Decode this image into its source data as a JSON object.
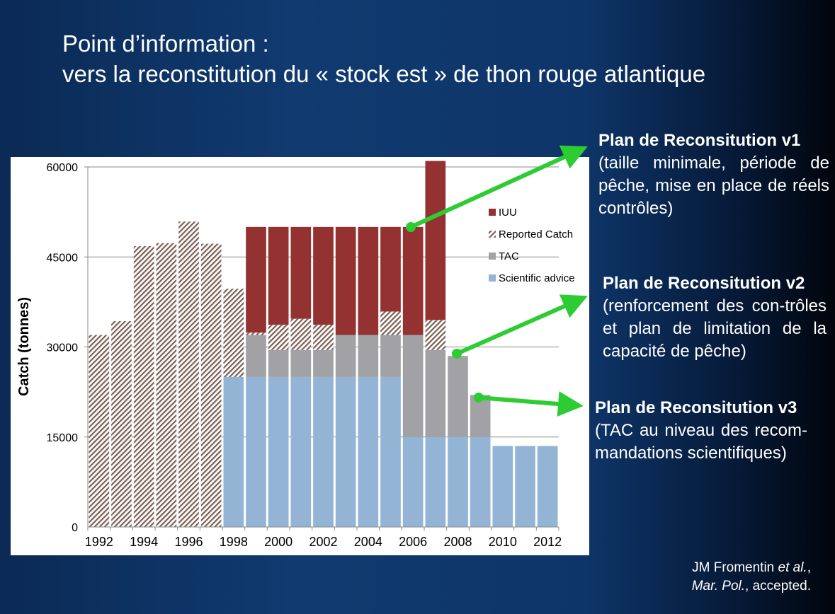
{
  "title": {
    "line1": "Point d’information :",
    "line2": "vers la reconstitution du « stock est » de thon rouge atlantique"
  },
  "notes": [
    {
      "heading": "Plan de Reconsitution v1",
      "body": "(taille minimale, période de pêche, mise en place de réels contrôles)"
    },
    {
      "heading": "Plan de Reconsitution v2",
      "body": "(renforcement des con-trôles et plan de limitation de la capacité de pêche)"
    },
    {
      "heading": "Plan de Reconsitution v3",
      "body": "(TAC au niveau des recom-mandations scientifiques)"
    }
  ],
  "reference": {
    "author": "JM Fromentin",
    "etal": "et al.",
    "journal": "Mar. Pol.",
    "status": ", accepted."
  },
  "colors": {
    "iuu": "#943131",
    "reported": "#7b5f55",
    "tac": "#a2a2a6",
    "advice": "#94b4d6",
    "arrow": "#2ecc33"
  },
  "chart_data": {
    "type": "bar",
    "stacked": true,
    "ylabel": "Catch (tonnes)",
    "xlabel": "",
    "ylim": [
      0,
      60000
    ],
    "yticks": [
      0,
      15000,
      30000,
      45000,
      60000
    ],
    "xtick_labels": [
      "1992",
      "1994",
      "1996",
      "1998",
      "2000",
      "2002",
      "2004",
      "2006",
      "2008",
      "2010",
      "2012"
    ],
    "categories": [
      "1992",
      "1993",
      "1994",
      "1995",
      "1996",
      "1997",
      "1998",
      "1999",
      "2000",
      "2001",
      "2002",
      "2003",
      "2004",
      "2005",
      "2006",
      "2007",
      "2008",
      "2009",
      "2010",
      "2011",
      "2012"
    ],
    "legend_position": "right",
    "series": [
      {
        "name": "Scientific advice",
        "key": "advice",
        "values": [
          0,
          0,
          0,
          0,
          0,
          0,
          25000,
          25000,
          25000,
          25000,
          25000,
          25000,
          25000,
          25000,
          15000,
          15000,
          15000,
          15000,
          13500,
          13500,
          13500
        ]
      },
      {
        "name": "TAC",
        "key": "tac",
        "values": [
          0,
          0,
          0,
          0,
          0,
          0,
          0,
          7000,
          4500,
          4500,
          4500,
          7000,
          7000,
          7000,
          17000,
          14500,
          13500,
          7000,
          0,
          0,
          0
        ]
      },
      {
        "name": "Reported Catch",
        "key": "reported",
        "values": [
          32000,
          34300,
          46800,
          47300,
          50900,
          47200,
          14700,
          400,
          4200,
          5200,
          4200,
          0,
          0,
          3900,
          0,
          5000,
          0,
          0,
          0,
          0,
          0
        ]
      },
      {
        "name": "IUU",
        "key": "iuu",
        "values": [
          0,
          0,
          0,
          0,
          0,
          0,
          0,
          17600,
          16300,
          15300,
          16300,
          18000,
          18000,
          14100,
          18000,
          26500,
          0,
          0,
          0,
          0,
          0
        ]
      }
    ],
    "legend_order": [
      "IUU",
      "Reported Catch",
      "TAC",
      "Scientific advice"
    ]
  }
}
